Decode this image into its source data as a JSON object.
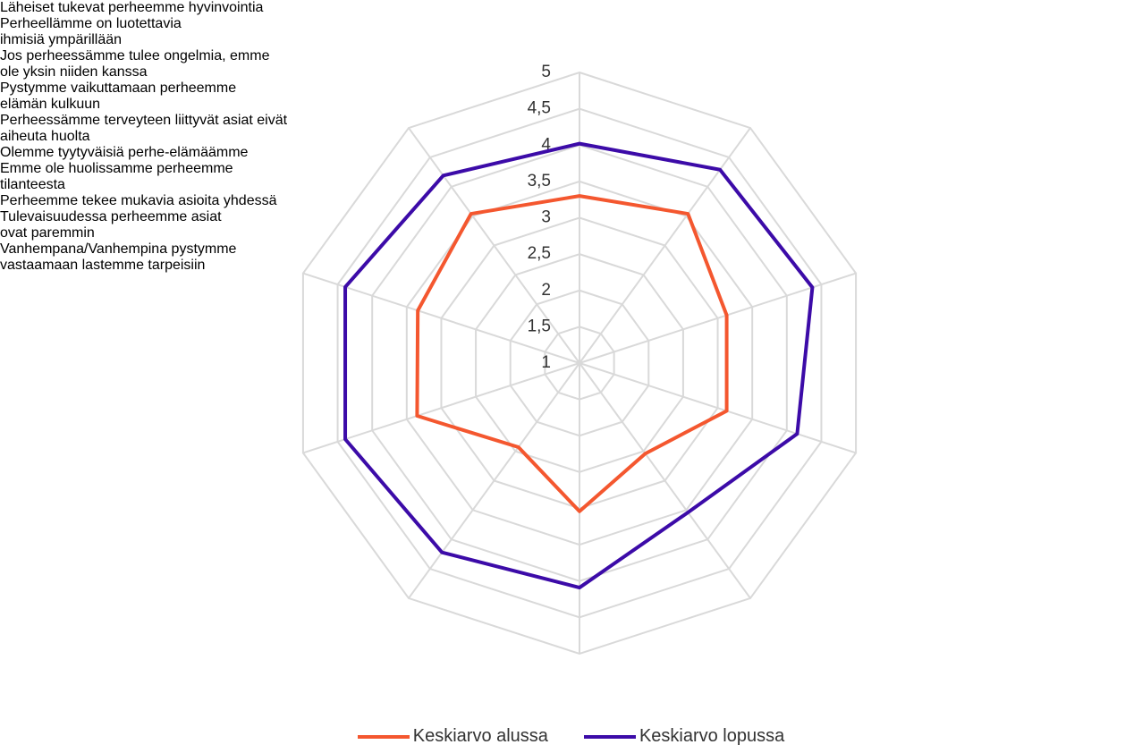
{
  "chart_data": {
    "type": "radar",
    "categories": [
      "Läheiset tukevat perheemme hyvinvointia",
      "Perheellämme on luotettavia ihmisiä ympärillään",
      "Jos perheessämme tulee ongelmia, emme ole yksin niiden kanssa",
      "Pystymme vaikuttamaan perheemme elämän kulkuun",
      "Perheessämme terveyteen liittyvät asiat eivät aiheuta huolta",
      "Olemme tyytyväisiä perhe-elämäämme",
      "Emme ole huolissamme perheemme tilanteesta",
      "Perheemme tekee mukavia asioita yhdessä",
      "Tulevaisuudessa perheemme asiat ovat paremmin",
      "Vanhempana/Vanhempina pystymme vastaamaan lastemme tarpeisiin"
    ],
    "series": [
      {
        "name": "Keskiarvo alussa",
        "color": "#f4572f",
        "values": [
          3.3,
          3.54,
          3.13,
          3.13,
          2.54,
          3.04,
          2.43,
          3.35,
          3.34,
          3.54
        ]
      },
      {
        "name": "Keskiarvo lopussa",
        "color": "#3c0ba8",
        "values": [
          4.02,
          4.29,
          4.37,
          4.15,
          3.54,
          4.09,
          4.22,
          4.39,
          4.39,
          4.19
        ]
      }
    ],
    "ylim": [
      1,
      5
    ],
    "yticks": [
      1,
      {
        "value": 1.5,
        "label": "1,5"
      },
      2,
      {
        "value": 2.5,
        "label": "2,5"
      },
      3,
      {
        "value": 3.5,
        "label": "3,5"
      },
      4,
      {
        "value": 4.5,
        "label": "4,5"
      },
      5
    ],
    "grid": true,
    "legend": "bottom"
  }
}
